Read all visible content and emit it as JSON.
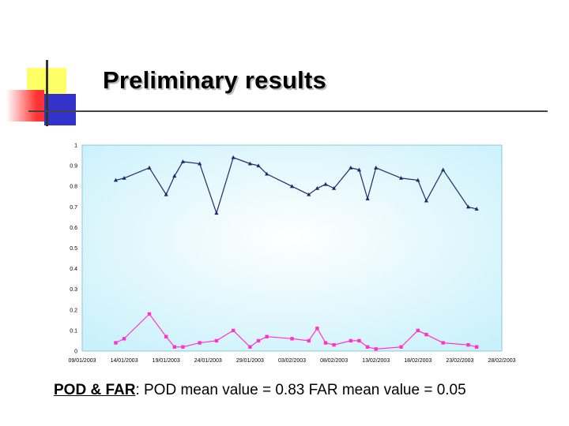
{
  "slide": {
    "title": "Preliminary results",
    "caption_label": "POD & FAR",
    "caption_text": ": POD mean value = 0.83  FAR mean value = 0.05"
  },
  "colors": {
    "pod": "#1f2a6b",
    "far": "#ff33cc",
    "plot_bg_center": "#ffffff",
    "plot_bg_edge": "#c9f1fb",
    "accent_yellow": "#ffff66",
    "accent_blue": "#3333cc",
    "accent_red": "#ff3333"
  },
  "chart_data": {
    "type": "line",
    "title": "",
    "xlabel": "",
    "ylabel": "",
    "xlim": [
      "2003-01-09",
      "2003-02-28"
    ],
    "ylim": [
      0,
      1
    ],
    "grid": false,
    "legend": "none",
    "x_tick_labels": [
      "09/01/2003",
      "14/01/2003",
      "19/01/2003",
      "24/01/2003",
      "29/01/2003",
      "03/02/2003",
      "08/02/2003",
      "13/02/2003",
      "18/02/2003",
      "23/02/2003",
      "28/02/2003"
    ],
    "y_tick_labels": [
      "0",
      "0.1",
      "0.2",
      "0.3",
      "0.4",
      "0.5",
      "0.6",
      "0.7",
      "0.8",
      "0.9",
      "1"
    ],
    "series": [
      {
        "key": "pod",
        "marker": "triangle",
        "points": [
          [
            "2003-01-13",
            0.83
          ],
          [
            "2003-01-14",
            0.84
          ],
          [
            "2003-01-17",
            0.89
          ],
          [
            "2003-01-19",
            0.76
          ],
          [
            "2003-01-20",
            0.85
          ],
          [
            "2003-01-21",
            0.92
          ],
          [
            "2003-01-23",
            0.91
          ],
          [
            "2003-01-25",
            0.67
          ],
          [
            "2003-01-27",
            0.94
          ],
          [
            "2003-01-29",
            0.91
          ],
          [
            "2003-01-30",
            0.9
          ],
          [
            "2003-01-31",
            0.86
          ],
          [
            "2003-02-03",
            0.8
          ],
          [
            "2003-02-05",
            0.76
          ],
          [
            "2003-02-06",
            0.79
          ],
          [
            "2003-02-07",
            0.81
          ],
          [
            "2003-02-08",
            0.79
          ],
          [
            "2003-02-10",
            0.89
          ],
          [
            "2003-02-11",
            0.88
          ],
          [
            "2003-02-12",
            0.74
          ],
          [
            "2003-02-13",
            0.89
          ],
          [
            "2003-02-16",
            0.84
          ],
          [
            "2003-02-18",
            0.83
          ],
          [
            "2003-02-19",
            0.73
          ],
          [
            "2003-02-21",
            0.88
          ],
          [
            "2003-02-24",
            0.7
          ],
          [
            "2003-02-25",
            0.69
          ]
        ]
      },
      {
        "key": "far",
        "marker": "square",
        "points": [
          [
            "2003-01-13",
            0.04
          ],
          [
            "2003-01-14",
            0.06
          ],
          [
            "2003-01-17",
            0.18
          ],
          [
            "2003-01-19",
            0.07
          ],
          [
            "2003-01-20",
            0.02
          ],
          [
            "2003-01-21",
            0.02
          ],
          [
            "2003-01-23",
            0.04
          ],
          [
            "2003-01-25",
            0.05
          ],
          [
            "2003-01-27",
            0.1
          ],
          [
            "2003-01-29",
            0.02
          ],
          [
            "2003-01-30",
            0.05
          ],
          [
            "2003-01-31",
            0.07
          ],
          [
            "2003-02-03",
            0.06
          ],
          [
            "2003-02-05",
            0.05
          ],
          [
            "2003-02-06",
            0.11
          ],
          [
            "2003-02-07",
            0.04
          ],
          [
            "2003-02-08",
            0.03
          ],
          [
            "2003-02-10",
            0.05
          ],
          [
            "2003-02-11",
            0.05
          ],
          [
            "2003-02-12",
            0.02
          ],
          [
            "2003-02-13",
            0.01
          ],
          [
            "2003-02-16",
            0.02
          ],
          [
            "2003-02-18",
            0.1
          ],
          [
            "2003-02-19",
            0.08
          ],
          [
            "2003-02-21",
            0.04
          ],
          [
            "2003-02-24",
            0.03
          ],
          [
            "2003-02-25",
            0.02
          ]
        ]
      }
    ]
  }
}
